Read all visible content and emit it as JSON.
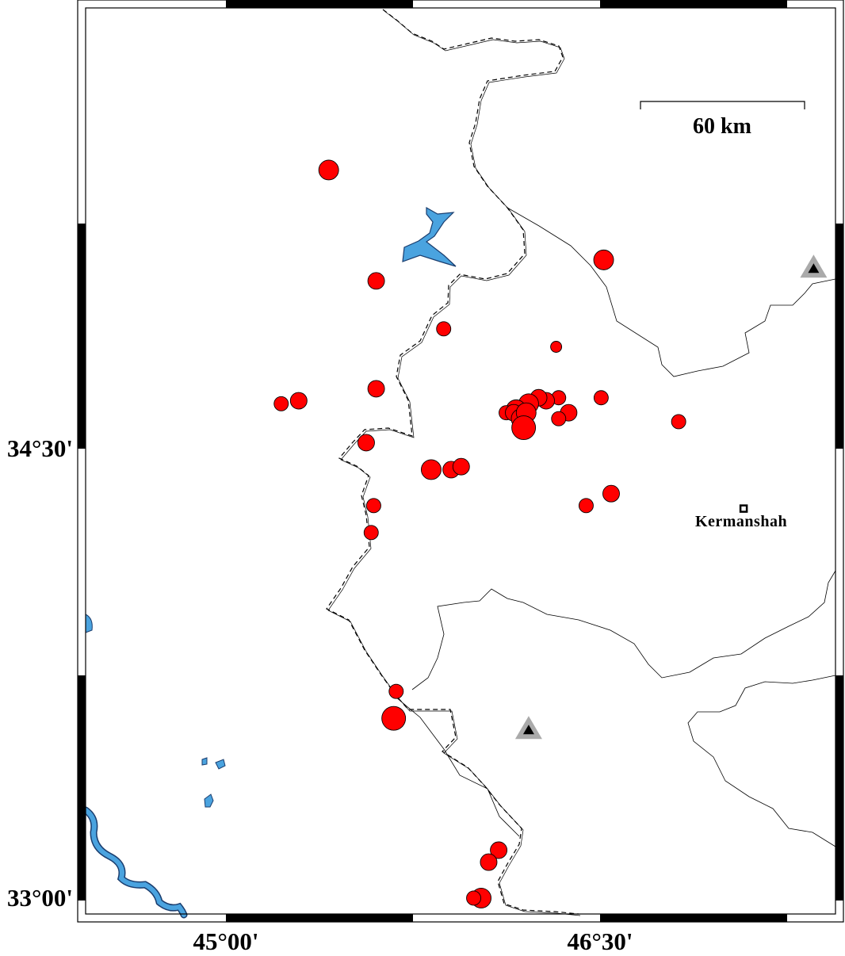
{
  "map": {
    "extent": {
      "lon": [
        44.4375,
        47.4375
      ],
      "lat": [
        32.947,
        35.971
      ]
    },
    "lat_labels": [
      {
        "value": 34.5,
        "text": "34°30'"
      },
      {
        "value": 33.0,
        "text": "33°00'"
      }
    ],
    "lon_labels": [
      {
        "value": 45.0,
        "text": "45°00'"
      },
      {
        "value": 46.5,
        "text": "46°30'"
      }
    ],
    "frame_style": "fancy alternating black/white, 0.75° segments",
    "scale_bar": {
      "label": "60 km",
      "length_km": 60
    },
    "colors": {
      "earthquake": "#ff0000",
      "water": "#4aa3df",
      "station_outer": "#aaaaaa",
      "station_inner": "#000000"
    },
    "city": {
      "name": "Kermanshah",
      "lon": 47.07,
      "lat": 34.3
    },
    "stations": [
      {
        "lon": 47.35,
        "lat": 35.1
      },
      {
        "lon": 46.21,
        "lat": 33.56
      }
    ],
    "earthquakes": [
      {
        "lon": 45.41,
        "lat": 35.43,
        "size": "L"
      },
      {
        "lon": 45.6,
        "lat": 35.06,
        "size": "M"
      },
      {
        "lon": 46.51,
        "lat": 35.13,
        "size": "L"
      },
      {
        "lon": 45.87,
        "lat": 34.9,
        "size": "S"
      },
      {
        "lon": 46.32,
        "lat": 34.84,
        "size": "XS"
      },
      {
        "lon": 45.6,
        "lat": 34.7,
        "size": "M"
      },
      {
        "lon": 45.22,
        "lat": 34.65,
        "size": "S"
      },
      {
        "lon": 45.29,
        "lat": 34.66,
        "size": "M"
      },
      {
        "lon": 45.56,
        "lat": 34.52,
        "size": "M"
      },
      {
        "lon": 45.82,
        "lat": 34.43,
        "size": "L"
      },
      {
        "lon": 45.9,
        "lat": 34.43,
        "size": "M"
      },
      {
        "lon": 45.94,
        "lat": 34.44,
        "size": "M"
      },
      {
        "lon": 45.59,
        "lat": 34.31,
        "size": "S"
      },
      {
        "lon": 45.58,
        "lat": 34.22,
        "size": "S"
      },
      {
        "lon": 46.44,
        "lat": 34.31,
        "size": "S"
      },
      {
        "lon": 46.54,
        "lat": 34.35,
        "size": "M"
      },
      {
        "lon": 46.5,
        "lat": 34.67,
        "size": "S"
      },
      {
        "lon": 46.81,
        "lat": 34.59,
        "size": "S"
      },
      {
        "lon": 46.37,
        "lat": 34.62,
        "size": "M"
      },
      {
        "lon": 46.33,
        "lat": 34.6,
        "size": "S"
      },
      {
        "lon": 46.33,
        "lat": 34.67,
        "size": "S"
      },
      {
        "lon": 46.28,
        "lat": 34.66,
        "size": "M"
      },
      {
        "lon": 46.25,
        "lat": 34.67,
        "size": "M"
      },
      {
        "lon": 46.21,
        "lat": 34.65,
        "size": "L"
      },
      {
        "lon": 46.16,
        "lat": 34.63,
        "size": "L"
      },
      {
        "lon": 46.12,
        "lat": 34.62,
        "size": "S"
      },
      {
        "lon": 46.15,
        "lat": 34.62,
        "size": "M"
      },
      {
        "lon": 46.18,
        "lat": 34.6,
        "size": "L"
      },
      {
        "lon": 46.2,
        "lat": 34.62,
        "size": "L"
      },
      {
        "lon": 46.19,
        "lat": 34.57,
        "size": "XL"
      },
      {
        "lon": 45.68,
        "lat": 33.69,
        "size": "S"
      },
      {
        "lon": 45.67,
        "lat": 33.6,
        "size": "XL"
      },
      {
        "lon": 46.09,
        "lat": 33.16,
        "size": "M"
      },
      {
        "lon": 46.05,
        "lat": 33.12,
        "size": "M"
      },
      {
        "lon": 46.02,
        "lat": 33.0,
        "size": "L"
      },
      {
        "lon": 45.99,
        "lat": 33.0,
        "size": "S"
      }
    ]
  }
}
